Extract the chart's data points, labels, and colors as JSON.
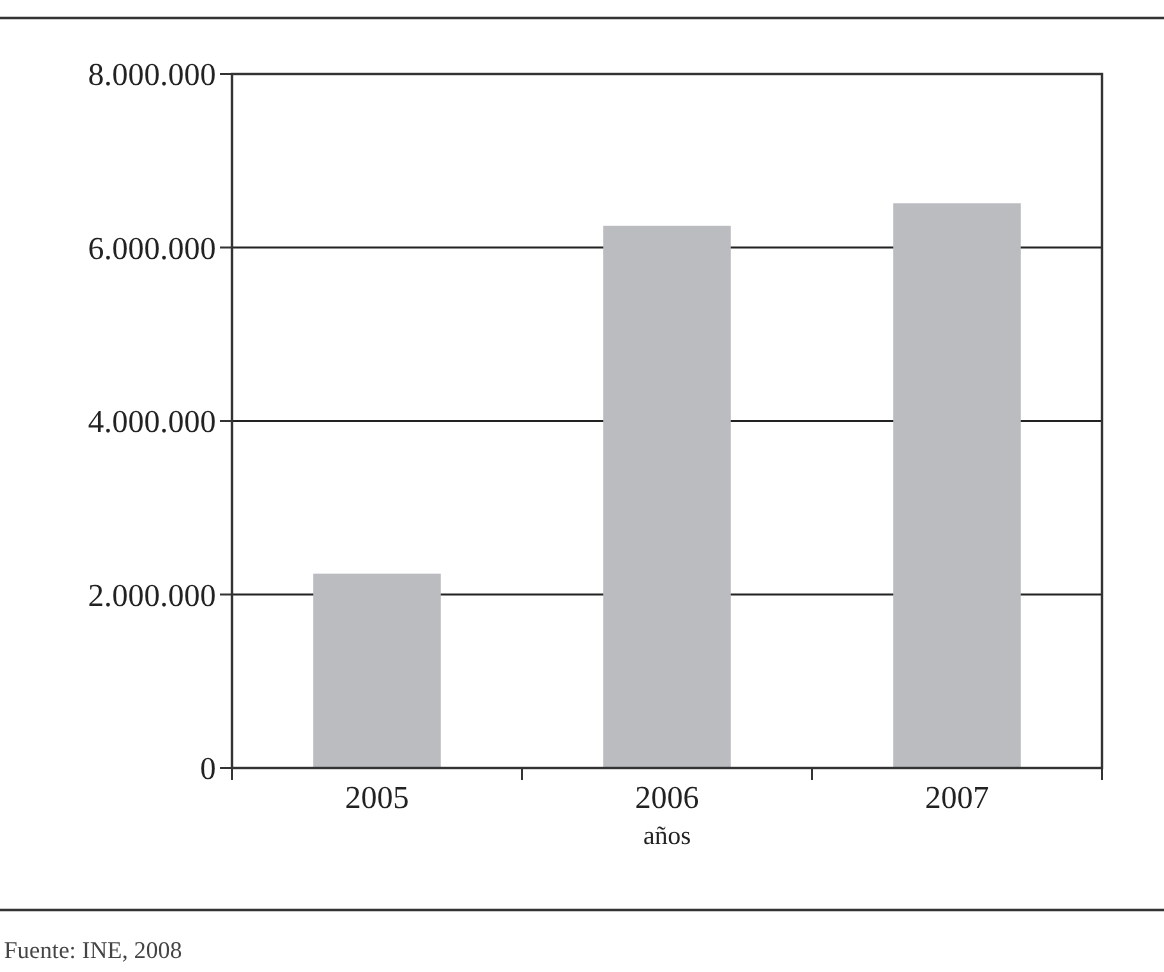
{
  "chart_data": {
    "type": "bar",
    "xlabel": "años",
    "categories": [
      "2005",
      "2006",
      "2007"
    ],
    "values": [
      2240000,
      6250000,
      6510000
    ],
    "color": "#bbbcc0",
    "ylim": [
      0,
      8000000
    ],
    "yticks": [
      {
        "value": 0,
        "label": "0"
      },
      {
        "value": 2000000,
        "label": "2.000.000"
      },
      {
        "value": 4000000,
        "label": "4.000.000"
      },
      {
        "value": 6000000,
        "label": "6.000.000"
      },
      {
        "value": 8000000,
        "label": "8.000.000"
      }
    ],
    "grid": "y",
    "annotations": [
      "Fuente: INE, 2008"
    ]
  }
}
